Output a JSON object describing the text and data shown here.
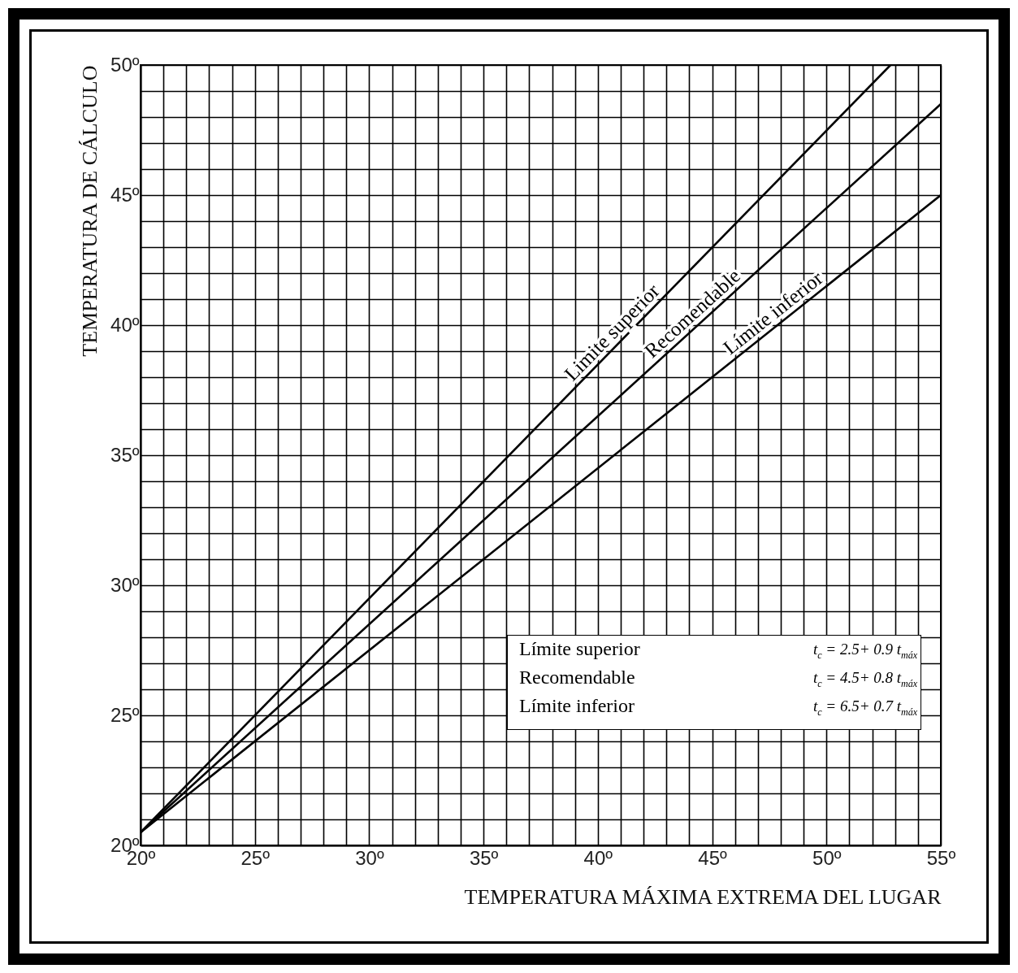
{
  "chart_data": {
    "type": "line",
    "xlabel": "TEMPERATURA MÁXIMA EXTREMA DEL LUGAR",
    "ylabel": "TEMPERATURA   DE   CÁLCULO",
    "series": [
      {
        "name": "Limite superior",
        "color": "#000000",
        "x": [
          20,
          52.8
        ],
        "values": [
          20.5,
          50
        ]
      },
      {
        "name": "Recomendable",
        "color": "#000000",
        "x": [
          20,
          55
        ],
        "values": [
          20.5,
          48.5
        ]
      },
      {
        "name": "Límite inferior",
        "color": "#000000",
        "x": [
          20,
          55
        ],
        "values": [
          20.5,
          45
        ]
      }
    ],
    "annotations": [
      "Límite superior",
      "t$_{c}$ = 2.5+ 0.9 t$_{máx}$",
      "Recomendable",
      "t$_{c}$ = 4.5+ 0.8 t$_{máx}$",
      "Límite inferior",
      "t$_{c}$ = 6.5+ 0.7 t$_{máx}$"
    ],
    "xlim": [
      20,
      55
    ],
    "ylim": [
      20,
      50
    ],
    "xticks": [
      {
        "value": 20,
        "label": "20º"
      },
      {
        "value": 21,
        "label": null
      },
      {
        "value": 22,
        "label": null
      },
      {
        "value": 23,
        "label": null
      },
      {
        "value": 24,
        "label": null
      },
      {
        "value": 25,
        "label": "25º"
      },
      {
        "value": 26,
        "label": null
      },
      {
        "value": 27,
        "label": null
      },
      {
        "value": 28,
        "label": null
      },
      {
        "value": 29,
        "label": null
      },
      {
        "value": 30,
        "label": "30º"
      },
      {
        "value": 31,
        "label": null
      },
      {
        "value": 32,
        "label": null
      },
      {
        "value": 33,
        "label": null
      },
      {
        "value": 34,
        "label": null
      },
      {
        "value": 35,
        "label": "35º"
      },
      {
        "value": 36,
        "label": null
      },
      {
        "value": 37,
        "label": null
      },
      {
        "value": 38,
        "label": null
      },
      {
        "value": 39,
        "label": null
      },
      {
        "value": 40,
        "label": "40º"
      },
      {
        "value": 41,
        "label": null
      },
      {
        "value": 42,
        "label": null
      },
      {
        "value": 43,
        "label": null
      },
      {
        "value": 44,
        "label": null
      },
      {
        "value": 45,
        "label": "45º"
      },
      {
        "value": 46,
        "label": null
      },
      {
        "value": 47,
        "label": null
      },
      {
        "value": 48,
        "label": null
      },
      {
        "value": 49,
        "label": null
      },
      {
        "value": 50,
        "label": "50º"
      },
      {
        "value": 51,
        "label": null
      },
      {
        "value": 52,
        "label": null
      },
      {
        "value": 53,
        "label": null
      },
      {
        "value": 54,
        "label": null
      },
      {
        "value": 55,
        "label": "55º"
      }
    ],
    "yticks": [
      {
        "value": 20,
        "label": "20º"
      },
      {
        "value": 21,
        "label": null
      },
      {
        "value": 22,
        "label": null
      },
      {
        "value": 23,
        "label": null
      },
      {
        "value": 24,
        "label": null
      },
      {
        "value": 25,
        "label": "25º"
      },
      {
        "value": 26,
        "label": null
      },
      {
        "value": 27,
        "label": null
      },
      {
        "value": 28,
        "label": null
      },
      {
        "value": 29,
        "label": null
      },
      {
        "value": 30,
        "label": "30º"
      },
      {
        "value": 31,
        "label": null
      },
      {
        "value": 32,
        "label": null
      },
      {
        "value": 33,
        "label": null
      },
      {
        "value": 34,
        "label": null
      },
      {
        "value": 35,
        "label": "35º"
      },
      {
        "value": 36,
        "label": null
      },
      {
        "value": 37,
        "label": null
      },
      {
        "value": 38,
        "label": null
      },
      {
        "value": 39,
        "label": null
      },
      {
        "value": 40,
        "label": "40º"
      },
      {
        "value": 41,
        "label": null
      },
      {
        "value": 42,
        "label": null
      },
      {
        "value": 43,
        "label": null
      },
      {
        "value": 44,
        "label": null
      },
      {
        "value": 45,
        "label": "45º"
      },
      {
        "value": 46,
        "label": null
      },
      {
        "value": 47,
        "label": null
      },
      {
        "value": 48,
        "label": null
      },
      {
        "value": 49,
        "label": null
      },
      {
        "value": 50,
        "label": "50º"
      }
    ],
    "grid": true,
    "line_style": "solid"
  }
}
